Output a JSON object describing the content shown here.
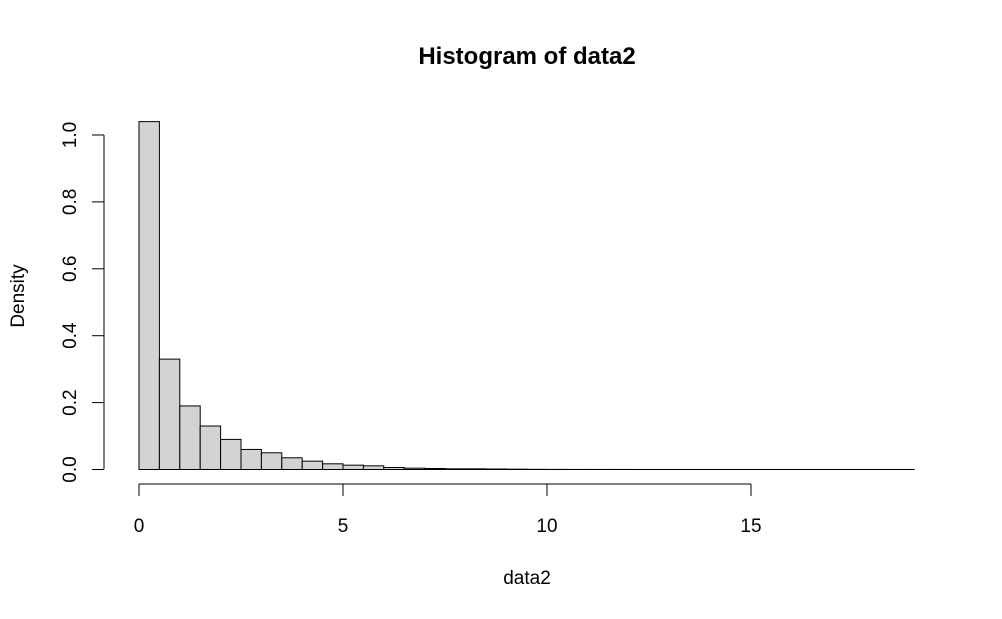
{
  "chart_data": {
    "type": "bar",
    "title": "Histogram of data2",
    "xlabel": "data2",
    "ylabel": "Density",
    "bin_width": 0.5,
    "x_start": 0,
    "x_end": 19,
    "values": [
      1.04,
      0.33,
      0.19,
      0.13,
      0.09,
      0.06,
      0.05,
      0.035,
      0.025,
      0.017,
      0.013,
      0.011,
      0.006,
      0.004,
      0.003,
      0.002,
      0.002,
      0.0015,
      0.001,
      0.0005,
      0.0003,
      0.0002,
      0.0002,
      0.0002,
      0.0001,
      0.0001,
      0.0001,
      0.0001,
      0.0001,
      0.0001,
      0.0001,
      0.0001,
      0.0001,
      0.0001,
      0.0001,
      0.0001,
      0.0001,
      0.0001
    ],
    "xlim": [
      0,
      19
    ],
    "ylim": [
      0,
      1.04
    ],
    "x_ticks": [
      0,
      5,
      10,
      15
    ],
    "x_tick_labels": [
      "0",
      "5",
      "10",
      "15"
    ],
    "y_ticks": [
      0,
      0.2,
      0.4,
      0.6,
      0.8,
      1.0
    ],
    "y_tick_labels": [
      "0.0",
      "0.2",
      "0.4",
      "0.6",
      "0.8",
      "1.0"
    ],
    "bar_fill": "#d3d3d3",
    "grid": false
  }
}
